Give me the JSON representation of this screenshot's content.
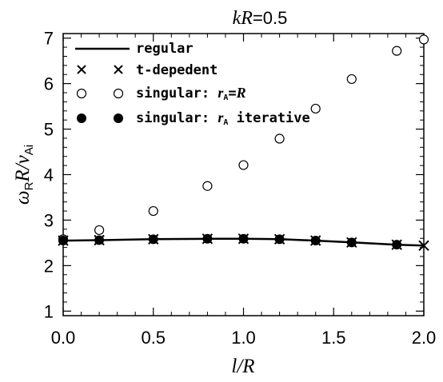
{
  "chart_data": {
    "type": "scatter",
    "title": "kR=0.5",
    "xlabel": "l/R",
    "ylabel": "ω_R R/v_Ai",
    "xlim": [
      0.0,
      2.0
    ],
    "ylim": [
      0.9,
      7.1
    ],
    "x_ticks": [
      0.0,
      0.5,
      1.0,
      1.5,
      2.0
    ],
    "x_tick_labels": [
      "0.0",
      "0.5",
      "1.0",
      "1.5",
      "2.0"
    ],
    "y_ticks": [
      1,
      2,
      3,
      4,
      5,
      6,
      7
    ],
    "y_tick_labels": [
      "1",
      "2",
      "3",
      "4",
      "5",
      "6",
      "7"
    ],
    "grid": false,
    "legend_position": "top-left",
    "series": [
      {
        "name": "regular",
        "style": "line",
        "x": [
          0.0,
          0.2,
          0.5,
          0.8,
          1.0,
          1.2,
          1.4,
          1.6,
          1.85,
          2.0
        ],
        "y": [
          2.55,
          2.56,
          2.58,
          2.59,
          2.59,
          2.58,
          2.55,
          2.51,
          2.46,
          2.44
        ]
      },
      {
        "name": "t-depedent",
        "style": "cross",
        "x": [
          0.0,
          0.2,
          0.5,
          0.8,
          1.0,
          1.2,
          1.4,
          1.6,
          1.85,
          2.0
        ],
        "y": [
          2.55,
          2.56,
          2.58,
          2.59,
          2.59,
          2.58,
          2.55,
          2.51,
          2.46,
          2.44
        ]
      },
      {
        "name": "singular: r_A=R",
        "style": "open-circle",
        "x": [
          0.0,
          0.2,
          0.5,
          0.8,
          1.0,
          1.2,
          1.4,
          1.6,
          1.85,
          2.0
        ],
        "y": [
          2.58,
          2.78,
          3.2,
          3.75,
          4.21,
          4.79,
          5.45,
          6.1,
          6.72,
          6.97
        ]
      },
      {
        "name": "singular: r_A iterative",
        "style": "filled-circle",
        "x": [
          0.0,
          0.2,
          0.5,
          0.8,
          1.0,
          1.2,
          1.4,
          1.6,
          1.85
        ],
        "y": [
          2.55,
          2.56,
          2.58,
          2.59,
          2.59,
          2.58,
          2.55,
          2.51,
          2.46
        ]
      }
    ]
  }
}
